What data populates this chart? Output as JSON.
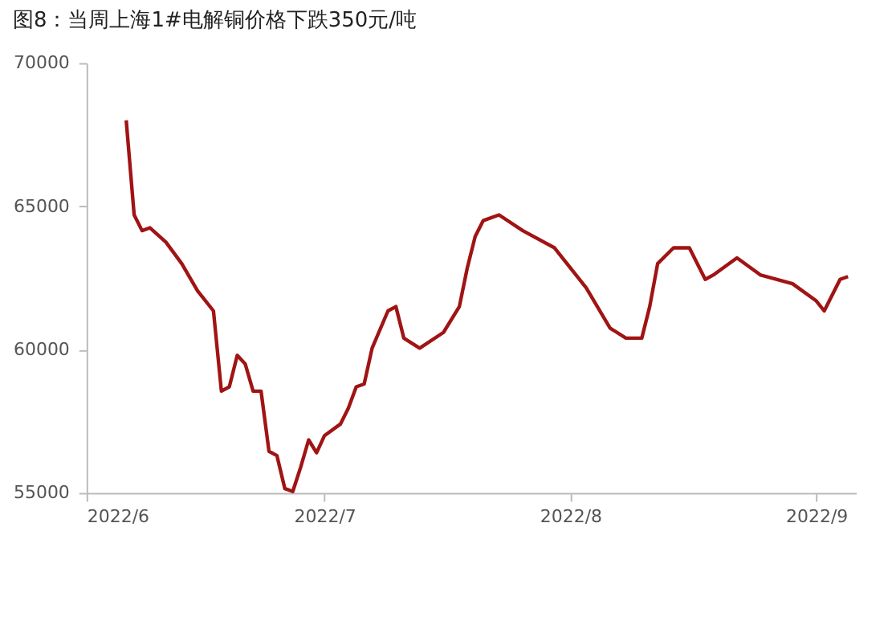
{
  "chart_data": {
    "type": "line",
    "title": "图8：当周上海1#电解铜价格下跌350元/吨",
    "x": [
      "2022-06-06",
      "2022-06-07",
      "2022-06-08",
      "2022-06-09",
      "2022-06-11",
      "2022-06-13",
      "2022-06-15",
      "2022-06-17",
      "2022-06-18",
      "2022-06-19",
      "2022-06-20",
      "2022-06-21",
      "2022-06-22",
      "2022-06-23",
      "2022-06-24",
      "2022-06-25",
      "2022-06-26",
      "2022-06-27",
      "2022-06-28",
      "2022-06-29",
      "2022-06-30",
      "2022-07-01",
      "2022-07-03",
      "2022-07-04",
      "2022-07-05",
      "2022-07-06",
      "2022-07-07",
      "2022-07-09",
      "2022-07-10",
      "2022-07-11",
      "2022-07-13",
      "2022-07-16",
      "2022-07-18",
      "2022-07-19",
      "2022-07-20",
      "2022-07-21",
      "2022-07-23",
      "2022-07-26",
      "2022-07-30",
      "2022-08-03",
      "2022-08-06",
      "2022-08-08",
      "2022-08-10",
      "2022-08-11",
      "2022-08-12",
      "2022-08-14",
      "2022-08-16",
      "2022-08-18",
      "2022-08-19",
      "2022-08-22",
      "2022-08-25",
      "2022-08-29",
      "2022-09-01",
      "2022-09-02",
      "2022-09-04",
      "2022-09-05"
    ],
    "series": [
      {
        "color": "#a01414",
        "values": [
          68000,
          64700,
          64150,
          64250,
          63750,
          63000,
          62050,
          61350,
          58550,
          58700,
          59800,
          59500,
          58550,
          58550,
          56450,
          56300,
          55150,
          55050,
          55900,
          56850,
          56400,
          57000,
          57400,
          57950,
          58700,
          58800,
          60050,
          61350,
          61500,
          60400,
          60050,
          60600,
          61500,
          62850,
          63950,
          64500,
          64700,
          64150,
          63550,
          62150,
          60750,
          60400,
          60400,
          61500,
          63000,
          63550,
          63550,
          62450,
          62600,
          63200,
          62600,
          62300,
          61700,
          61350,
          62450,
          62550
        ]
      }
    ],
    "xlim": [
      "2022-06-01",
      "2022-09-06"
    ],
    "xticks": [
      {
        "value": "2022-06-01",
        "label": "2022/6"
      },
      {
        "value": "2022-07-01",
        "label": "2022/7"
      },
      {
        "value": "2022-08-01",
        "label": "2022/8"
      },
      {
        "value": "2022-09-01",
        "label": "2022/9"
      }
    ],
    "ylim": [
      55000,
      70000
    ],
    "yticks": [
      55000,
      60000,
      65000,
      70000
    ],
    "grid": false,
    "marker": "none",
    "line_style": "solid"
  }
}
